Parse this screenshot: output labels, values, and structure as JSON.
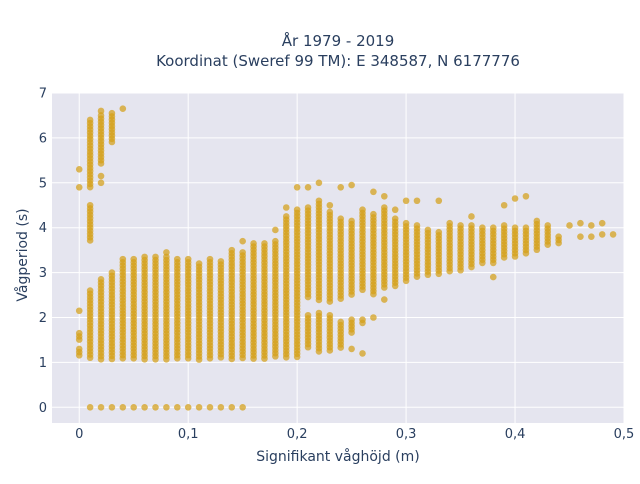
{
  "chart_data": {
    "type": "scatter",
    "title_line1": "År 1979 - 2019",
    "title_line2": "Koordinat (Sweref 99 TM): E 348587, N 6177776",
    "xlabel": "Signifikant våghöjd (m)",
    "ylabel": "Vågperiod (s)",
    "xlim": [
      -0.025,
      0.5
    ],
    "ylim": [
      -0.35,
      7
    ],
    "x_ticks": [
      {
        "value": 0,
        "label": "0"
      },
      {
        "value": 0.1,
        "label": "0,1"
      },
      {
        "value": 0.2,
        "label": "0,2"
      },
      {
        "value": 0.3,
        "label": "0,3"
      },
      {
        "value": 0.4,
        "label": "0,4"
      },
      {
        "value": 0.5,
        "label": "0,5"
      }
    ],
    "y_ticks": [
      {
        "value": 0,
        "label": "0"
      },
      {
        "value": 1,
        "label": "1"
      },
      {
        "value": 2,
        "label": "2"
      },
      {
        "value": 3,
        "label": "3"
      },
      {
        "value": 4,
        "label": "4"
      },
      {
        "value": 5,
        "label": "5"
      },
      {
        "value": 6,
        "label": "6"
      },
      {
        "value": 7,
        "label": "7"
      }
    ],
    "grid": true,
    "marker_color": "#d4a017",
    "background_color": "#e5e5ef",
    "columns": [
      {
        "x": 0.0,
        "ranges": [
          [
            1.15,
            1.3
          ],
          [
            1.45,
            1.65
          ]
        ],
        "points": [
          2.15,
          4.9,
          5.3
        ]
      },
      {
        "x": 0.01,
        "ranges": [
          [
            1.05,
            2.6
          ],
          [
            3.7,
            4.5
          ],
          [
            4.9,
            6.4
          ]
        ],
        "points": [
          0
        ]
      },
      {
        "x": 0.02,
        "ranges": [
          [
            1.05,
            2.85
          ],
          [
            5.4,
            6.5
          ]
        ],
        "points": [
          0,
          5.0,
          5.15,
          6.6
        ]
      },
      {
        "x": 0.03,
        "ranges": [
          [
            1.05,
            3.0
          ],
          [
            5.9,
            6.55
          ]
        ],
        "points": [
          0
        ]
      },
      {
        "x": 0.04,
        "ranges": [
          [
            1.05,
            3.3
          ]
        ],
        "points": [
          0,
          6.65
        ]
      },
      {
        "x": 0.05,
        "ranges": [
          [
            1.05,
            3.3
          ]
        ],
        "points": [
          0
        ]
      },
      {
        "x": 0.06,
        "ranges": [
          [
            1.05,
            3.35
          ]
        ],
        "points": [
          0
        ]
      },
      {
        "x": 0.07,
        "ranges": [
          [
            1.05,
            3.35
          ]
        ],
        "points": [
          0
        ]
      },
      {
        "x": 0.08,
        "ranges": [
          [
            1.05,
            3.35
          ]
        ],
        "points": [
          0,
          3.45
        ]
      },
      {
        "x": 0.09,
        "ranges": [
          [
            1.05,
            3.3
          ]
        ],
        "points": [
          0
        ]
      },
      {
        "x": 0.1,
        "ranges": [
          [
            1.05,
            3.3
          ]
        ],
        "points": [
          0
        ]
      },
      {
        "x": 0.11,
        "ranges": [
          [
            1.05,
            3.2
          ]
        ],
        "points": [
          0
        ]
      },
      {
        "x": 0.12,
        "ranges": [
          [
            1.05,
            3.3
          ]
        ],
        "points": [
          0
        ]
      },
      {
        "x": 0.13,
        "ranges": [
          [
            1.05,
            3.25
          ]
        ],
        "points": [
          0
        ]
      },
      {
        "x": 0.14,
        "ranges": [
          [
            1.05,
            3.5
          ]
        ],
        "points": [
          0
        ]
      },
      {
        "x": 0.15,
        "ranges": [
          [
            1.05,
            3.45
          ]
        ],
        "points": [
          0,
          3.7
        ]
      },
      {
        "x": 0.16,
        "ranges": [
          [
            1.05,
            3.65
          ]
        ],
        "points": []
      },
      {
        "x": 0.17,
        "ranges": [
          [
            1.05,
            3.65
          ]
        ],
        "points": []
      },
      {
        "x": 0.18,
        "ranges": [
          [
            1.1,
            3.7
          ]
        ],
        "points": [
          3.95
        ]
      },
      {
        "x": 0.19,
        "ranges": [
          [
            1.1,
            4.25
          ]
        ],
        "points": [
          4.45
        ]
      },
      {
        "x": 0.2,
        "ranges": [
          [
            1.1,
            4.4
          ]
        ],
        "points": [
          4.9
        ]
      },
      {
        "x": 0.21,
        "ranges": [
          [
            1.3,
            2.05
          ],
          [
            2.4,
            4.45
          ]
        ],
        "points": [
          4.9
        ]
      },
      {
        "x": 0.22,
        "ranges": [
          [
            1.2,
            2.1
          ],
          [
            2.35,
            4.6
          ]
        ],
        "points": [
          5.0
        ]
      },
      {
        "x": 0.23,
        "ranges": [
          [
            1.2,
            2.05
          ],
          [
            2.3,
            4.35
          ]
        ],
        "points": [
          4.5
        ]
      },
      {
        "x": 0.24,
        "ranges": [
          [
            1.3,
            1.9
          ],
          [
            2.4,
            4.2
          ]
        ],
        "points": [
          4.9
        ]
      },
      {
        "x": 0.25,
        "ranges": [
          [
            1.6,
            1.95
          ],
          [
            2.5,
            4.15
          ]
        ],
        "points": [
          4.95,
          1.3
        ]
      },
      {
        "x": 0.26,
        "ranges": [
          [
            1.85,
            1.95
          ],
          [
            2.55,
            4.4
          ]
        ],
        "points": [
          1.2
        ]
      },
      {
        "x": 0.27,
        "ranges": [
          [
            2.5,
            4.3
          ]
        ],
        "points": [
          2.0,
          4.8
        ]
      },
      {
        "x": 0.28,
        "ranges": [
          [
            2.6,
            4.45
          ]
        ],
        "points": [
          2.4,
          4.7
        ]
      },
      {
        "x": 0.29,
        "ranges": [
          [
            2.7,
            4.2
          ]
        ],
        "points": [
          4.4
        ]
      },
      {
        "x": 0.3,
        "ranges": [
          [
            2.8,
            4.1
          ]
        ],
        "points": [
          4.6
        ]
      },
      {
        "x": 0.31,
        "ranges": [
          [
            2.85,
            4.05
          ]
        ],
        "points": [
          4.6
        ]
      },
      {
        "x": 0.32,
        "ranges": [
          [
            2.9,
            3.95
          ]
        ],
        "points": []
      },
      {
        "x": 0.33,
        "ranges": [
          [
            2.95,
            3.9
          ]
        ],
        "points": [
          4.6
        ]
      },
      {
        "x": 0.34,
        "ranges": [
          [
            3.0,
            4.1
          ]
        ],
        "points": []
      },
      {
        "x": 0.35,
        "ranges": [
          [
            3.05,
            4.05
          ]
        ],
        "points": []
      },
      {
        "x": 0.36,
        "ranges": [
          [
            3.1,
            4.05
          ]
        ],
        "points": [
          4.25
        ]
      },
      {
        "x": 0.37,
        "ranges": [
          [
            3.2,
            4.0
          ]
        ],
        "points": []
      },
      {
        "x": 0.38,
        "ranges": [
          [
            3.2,
            4.0
          ]
        ],
        "points": [
          2.9
        ]
      },
      {
        "x": 0.39,
        "ranges": [
          [
            3.3,
            4.05
          ]
        ],
        "points": [
          4.5
        ]
      },
      {
        "x": 0.4,
        "ranges": [
          [
            3.35,
            4.0
          ]
        ],
        "points": [
          4.65
        ]
      },
      {
        "x": 0.41,
        "ranges": [
          [
            3.4,
            4.0
          ]
        ],
        "points": [
          4.7
        ]
      },
      {
        "x": 0.42,
        "ranges": [
          [
            3.5,
            4.15
          ]
        ],
        "points": []
      },
      {
        "x": 0.43,
        "ranges": [
          [
            3.6,
            4.05
          ]
        ],
        "points": []
      },
      {
        "x": 0.44,
        "ranges": [
          [
            3.65,
            3.8
          ]
        ],
        "points": []
      },
      {
        "x": 0.45,
        "ranges": [],
        "points": [
          4.05
        ]
      },
      {
        "x": 0.46,
        "ranges": [],
        "points": [
          4.1,
          3.8
        ]
      },
      {
        "x": 0.47,
        "ranges": [],
        "points": [
          4.05,
          3.8
        ]
      },
      {
        "x": 0.48,
        "ranges": [],
        "points": [
          4.1,
          3.85
        ]
      },
      {
        "x": 0.49,
        "ranges": [],
        "points": [
          3.85
        ]
      }
    ]
  }
}
